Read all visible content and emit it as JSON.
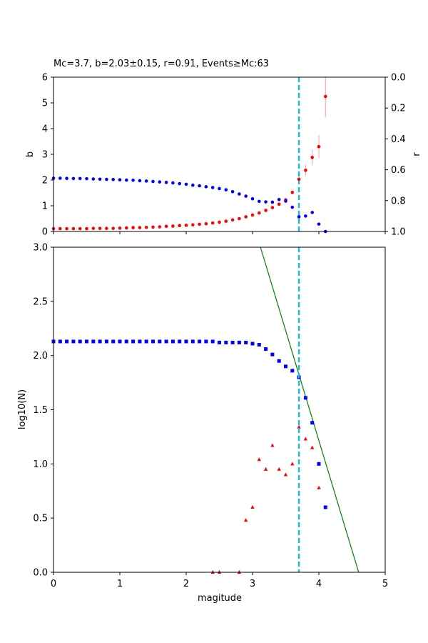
{
  "chart_data": [
    {
      "type": "scatter",
      "title": "Mc=3.7, b=2.03±0.15, r=0.91, Events≥Mc:63",
      "xlabel": "",
      "ylabel": "b",
      "y2label": "r",
      "xlim": [
        0,
        5
      ],
      "ylim": [
        0,
        6
      ],
      "y2lim": [
        1.0,
        0.0
      ],
      "y2_inverted": true,
      "xticks": [
        "0",
        "1",
        "2",
        "3",
        "4",
        "5"
      ],
      "yticks": [
        "0",
        "1",
        "2",
        "3",
        "4",
        "5",
        "6"
      ],
      "y2ticks": [
        "0.0",
        "0.2",
        "0.4",
        "0.6",
        "0.8",
        "1.0"
      ],
      "mc_line": 3.7,
      "mc_line_color": "#17becf",
      "series": [
        {
          "axis": "left",
          "color": "#ff0000",
          "errorbar_color": "#f4a0a0",
          "points": [
            [
              0.0,
              0.11
            ],
            [
              0.1,
              0.11
            ],
            [
              0.2,
              0.11
            ],
            [
              0.3,
              0.11
            ],
            [
              0.4,
              0.11
            ],
            [
              0.5,
              0.11
            ],
            [
              0.6,
              0.12
            ],
            [
              0.7,
              0.12
            ],
            [
              0.8,
              0.12
            ],
            [
              0.9,
              0.12
            ],
            [
              1.0,
              0.13
            ],
            [
              1.1,
              0.14
            ],
            [
              1.2,
              0.15
            ],
            [
              1.3,
              0.15
            ],
            [
              1.4,
              0.16
            ],
            [
              1.5,
              0.17
            ],
            [
              1.6,
              0.18
            ],
            [
              1.7,
              0.2
            ],
            [
              1.8,
              0.21
            ],
            [
              1.9,
              0.23
            ],
            [
              2.0,
              0.24
            ],
            [
              2.1,
              0.26
            ],
            [
              2.2,
              0.28
            ],
            [
              2.3,
              0.3
            ],
            [
              2.4,
              0.33
            ],
            [
              2.5,
              0.36
            ],
            [
              2.6,
              0.4
            ],
            [
              2.7,
              0.45
            ],
            [
              2.8,
              0.5
            ],
            [
              2.9,
              0.57
            ],
            [
              3.0,
              0.64
            ],
            [
              3.1,
              0.72
            ],
            [
              3.2,
              0.82
            ],
            [
              3.3,
              0.93
            ],
            [
              3.4,
              1.06
            ],
            [
              3.5,
              1.23
            ],
            [
              3.6,
              1.52
            ],
            [
              3.7,
              2.03
            ],
            [
              3.8,
              2.38
            ],
            [
              3.9,
              2.88
            ],
            [
              4.0,
              3.3
            ],
            [
              4.1,
              5.25
            ]
          ],
          "errors": [
            [
              3.7,
              0.15
            ],
            [
              3.8,
              0.2
            ],
            [
              3.9,
              0.3
            ],
            [
              4.0,
              0.45
            ],
            [
              4.1,
              0.8
            ]
          ]
        },
        {
          "axis": "right",
          "color": "#0000ff",
          "points": [
            [
              0.0,
              0.655
            ],
            [
              0.1,
              0.655
            ],
            [
              0.2,
              0.656
            ],
            [
              0.3,
              0.657
            ],
            [
              0.4,
              0.657
            ],
            [
              0.5,
              0.658
            ],
            [
              0.6,
              0.66
            ],
            [
              0.7,
              0.661
            ],
            [
              0.8,
              0.662
            ],
            [
              0.9,
              0.663
            ],
            [
              1.0,
              0.665
            ],
            [
              1.1,
              0.667
            ],
            [
              1.2,
              0.668
            ],
            [
              1.3,
              0.671
            ],
            [
              1.4,
              0.673
            ],
            [
              1.5,
              0.676
            ],
            [
              1.6,
              0.679
            ],
            [
              1.7,
              0.682
            ],
            [
              1.8,
              0.685
            ],
            [
              1.9,
              0.69
            ],
            [
              2.0,
              0.694
            ],
            [
              2.1,
              0.7
            ],
            [
              2.2,
              0.704
            ],
            [
              2.3,
              0.71
            ],
            [
              2.4,
              0.715
            ],
            [
              2.5,
              0.722
            ],
            [
              2.6,
              0.73
            ],
            [
              2.7,
              0.742
            ],
            [
              2.8,
              0.757
            ],
            [
              2.9,
              0.771
            ],
            [
              3.0,
              0.788
            ],
            [
              3.1,
              0.805
            ],
            [
              3.2,
              0.808
            ],
            [
              3.3,
              0.81
            ],
            [
              3.4,
              0.793
            ],
            [
              3.5,
              0.803
            ],
            [
              3.6,
              0.843
            ],
            [
              3.7,
              0.905
            ],
            [
              3.8,
              0.9
            ],
            [
              3.9,
              0.877
            ],
            [
              4.0,
              0.952
            ],
            [
              4.1,
              1.0
            ]
          ]
        }
      ]
    },
    {
      "type": "scatter",
      "title": "",
      "xlabel": "magitude",
      "ylabel": "log10(N)",
      "xlim": [
        0,
        5
      ],
      "ylim": [
        0,
        3
      ],
      "xticks": [
        "0",
        "1",
        "2",
        "3",
        "4",
        "5"
      ],
      "yticks": [
        "0.0",
        "0.5",
        "1.0",
        "1.5",
        "2.0",
        "2.5",
        "3.0"
      ],
      "mc_line": 3.7,
      "mc_line_color": "#17becf",
      "fit_line": {
        "color": "#008000",
        "points": [
          [
            3.12,
            3.0
          ],
          [
            4.6,
            0.0
          ]
        ]
      },
      "series": [
        {
          "marker": "square",
          "color": "#0000ff",
          "points": [
            [
              0.0,
              2.13
            ],
            [
              0.1,
              2.13
            ],
            [
              0.2,
              2.13
            ],
            [
              0.3,
              2.13
            ],
            [
              0.4,
              2.13
            ],
            [
              0.5,
              2.13
            ],
            [
              0.6,
              2.13
            ],
            [
              0.7,
              2.13
            ],
            [
              0.8,
              2.13
            ],
            [
              0.9,
              2.13
            ],
            [
              1.0,
              2.13
            ],
            [
              1.1,
              2.13
            ],
            [
              1.2,
              2.13
            ],
            [
              1.3,
              2.13
            ],
            [
              1.4,
              2.13
            ],
            [
              1.5,
              2.13
            ],
            [
              1.6,
              2.13
            ],
            [
              1.7,
              2.13
            ],
            [
              1.8,
              2.13
            ],
            [
              1.9,
              2.13
            ],
            [
              2.0,
              2.13
            ],
            [
              2.1,
              2.13
            ],
            [
              2.2,
              2.13
            ],
            [
              2.3,
              2.13
            ],
            [
              2.4,
              2.13
            ],
            [
              2.5,
              2.12
            ],
            [
              2.6,
              2.12
            ],
            [
              2.7,
              2.12
            ],
            [
              2.8,
              2.12
            ],
            [
              2.9,
              2.12
            ],
            [
              3.0,
              2.11
            ],
            [
              3.1,
              2.1
            ],
            [
              3.2,
              2.06
            ],
            [
              3.3,
              2.01
            ],
            [
              3.4,
              1.95
            ],
            [
              3.5,
              1.9
            ],
            [
              3.6,
              1.86
            ],
            [
              3.7,
              1.8
            ],
            [
              3.8,
              1.61
            ],
            [
              3.9,
              1.38
            ],
            [
              4.0,
              1.0
            ],
            [
              4.1,
              0.6
            ]
          ]
        },
        {
          "marker": "triangle",
          "color": "#ff0000",
          "points": [
            [
              2.4,
              0.0
            ],
            [
              2.5,
              0.0
            ],
            [
              2.8,
              0.0
            ],
            [
              2.9,
              0.48
            ],
            [
              3.0,
              0.6
            ],
            [
              3.1,
              1.04
            ],
            [
              3.2,
              0.95
            ],
            [
              3.3,
              1.17
            ],
            [
              3.4,
              0.95
            ],
            [
              3.5,
              0.9
            ],
            [
              3.6,
              1.0
            ],
            [
              3.7,
              1.34
            ],
            [
              3.8,
              1.23
            ],
            [
              3.9,
              1.15
            ],
            [
              4.0,
              0.78
            ]
          ]
        }
      ]
    }
  ]
}
